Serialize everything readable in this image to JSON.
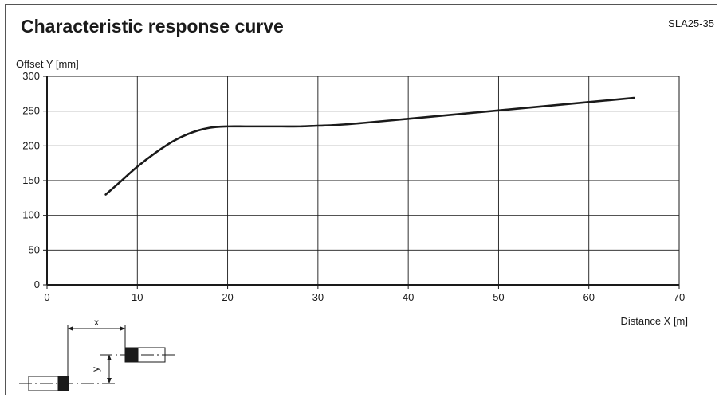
{
  "header": {
    "title": "Characteristic response curve",
    "model": "SLA25-35"
  },
  "chart_data": {
    "type": "line",
    "title": "Characteristic response curve",
    "xlabel": "Distance X [m]",
    "ylabel": "Offset Y [mm]",
    "xlim": [
      0,
      70
    ],
    "ylim": [
      0,
      300
    ],
    "xticks": [
      0,
      10,
      20,
      30,
      40,
      50,
      60,
      70
    ],
    "yticks": [
      0,
      50,
      100,
      150,
      200,
      250,
      300
    ],
    "grid": true,
    "series": [
      {
        "x": [
          6.5,
          8,
          10,
          12,
          14,
          16,
          18,
          20,
          22,
          24,
          26,
          28,
          30,
          32,
          35,
          40,
          45,
          50,
          55,
          60,
          65
        ],
        "y": [
          130,
          147,
          170,
          190,
          207,
          219,
          226,
          228,
          228,
          228,
          228,
          228,
          229,
          230,
          233,
          239,
          245,
          251,
          257,
          263,
          269
        ]
      }
    ]
  },
  "diagram": {
    "x_label": "x",
    "y_label": "y"
  }
}
